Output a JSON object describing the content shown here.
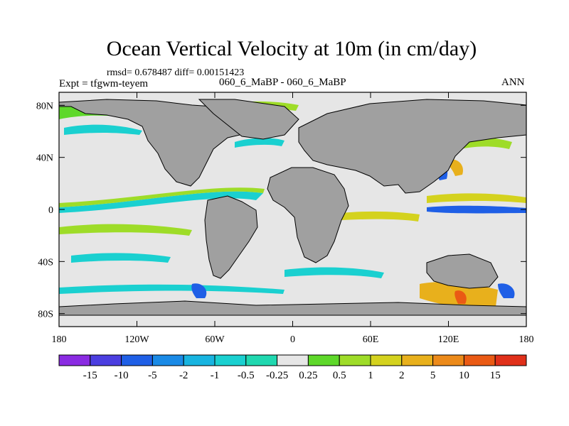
{
  "chart_data": {
    "type": "heatmap",
    "title": "Ocean Vertical Velocity at 10m (in cm/day)",
    "stats_text": "rmsd= 0.678487 diff= 0.00151423",
    "left_label": "Expt = tfgwm-teyem",
    "subtitle": "060_6_MaBP - 060_6_MaBP",
    "season": "ANN",
    "x_ticks": [
      "180",
      "120W",
      "60W",
      "0",
      "60E",
      "120E",
      "180"
    ],
    "y_ticks": [
      "80N",
      "40N",
      "0",
      "40S",
      "80S"
    ],
    "x_range": [
      -180,
      180
    ],
    "y_range": [
      -90,
      90
    ],
    "colorbar_labels": [
      "-15",
      "-10",
      "-5",
      "-2",
      "-1",
      "-0.5",
      "-0.25",
      "0.25",
      "0.5",
      "1",
      "2",
      "5",
      "10",
      "15"
    ],
    "colorbar_colors": [
      "#8a2be2",
      "#4b3ee0",
      "#1f5fe6",
      "#1a8ae6",
      "#18b4e0",
      "#1ad0d0",
      "#20d8b0",
      "#e6e6e6",
      "#5ed82a",
      "#9edc28",
      "#d4d21e",
      "#e8b01c",
      "#ec8a1a",
      "#ea5a14",
      "#e0301a"
    ],
    "land_color": "#a0a0a0",
    "neutral_color": "#e6e6e6"
  }
}
